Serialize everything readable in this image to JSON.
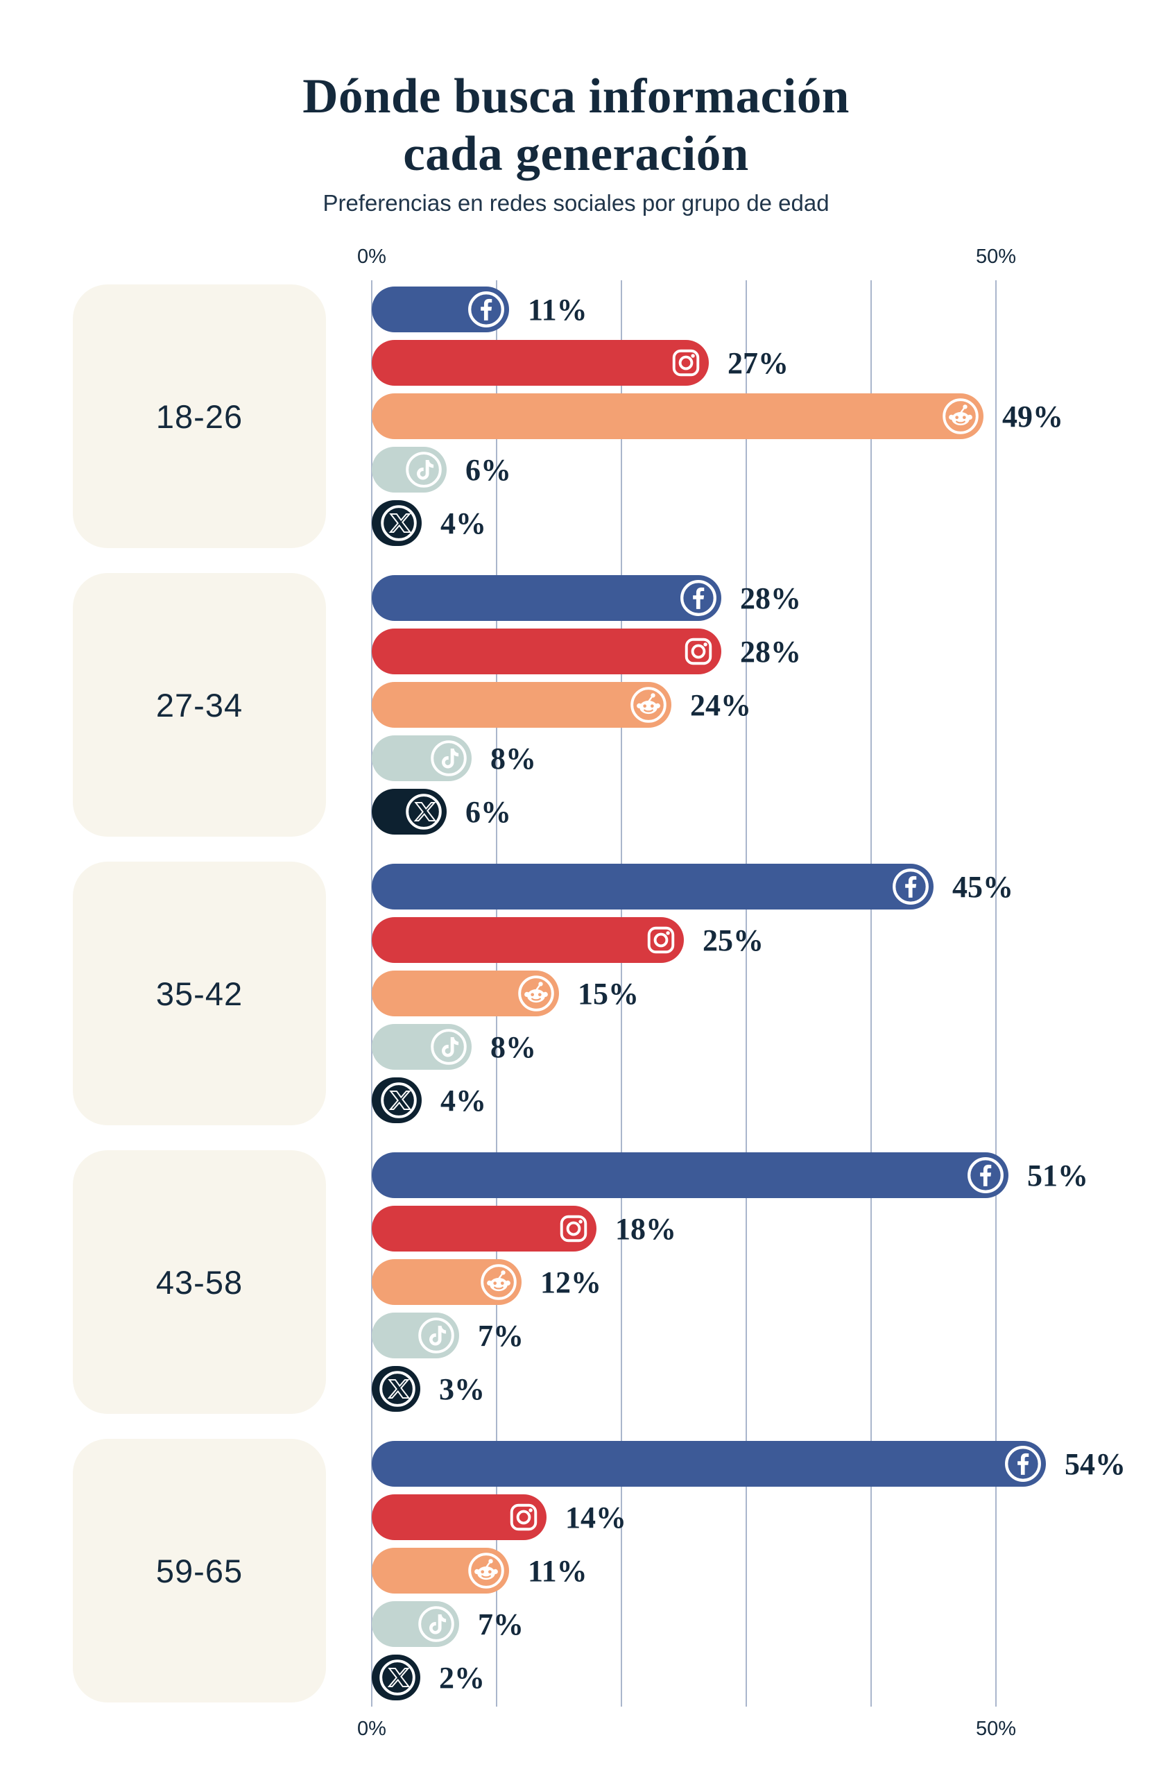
{
  "title": {
    "line1": "Dónde busca información",
    "line2": "cada generación"
  },
  "subtitle": "Preferencias en redes sociales por grupo de edad",
  "axis": {
    "top_left": "0%",
    "top_right": "50%",
    "bottom_left": "0%",
    "bottom_right": "50%"
  },
  "colors": {
    "background": "#ffffff",
    "text": "#14293c",
    "group_box": "#f8f5ec",
    "gridline": "#aab6cc",
    "facebook": "#3d5a97",
    "instagram": "#d8393f",
    "reddit": "#f3a173",
    "tiktok": "#c2d5d1",
    "x": "#0d2130"
  },
  "chart_data": {
    "type": "bar",
    "orientation": "horizontal",
    "title": "Dónde busca información cada generación",
    "subtitle": "Preferencias en redes sociales por grupo de edad",
    "xlabel": "",
    "ylabel": "",
    "grid": true,
    "legend_position": "none",
    "x_axis": {
      "min": 0,
      "max": 50,
      "unit": "%",
      "gridline_step": 10,
      "tick_labels": [
        "0%",
        "50%"
      ]
    },
    "categories": [
      "18-26",
      "27-34",
      "35-42",
      "43-58",
      "59-65"
    ],
    "series": [
      {
        "name": "Facebook",
        "icon": "facebook-icon",
        "color": "#3d5a97",
        "values": [
          11,
          28,
          45,
          51,
          54
        ]
      },
      {
        "name": "Instagram",
        "icon": "instagram-icon",
        "color": "#d8393f",
        "values": [
          27,
          28,
          25,
          18,
          14
        ]
      },
      {
        "name": "Reddit",
        "icon": "reddit-icon",
        "color": "#f3a173",
        "values": [
          49,
          24,
          15,
          12,
          11
        ]
      },
      {
        "name": "TikTok",
        "icon": "tiktok-icon",
        "color": "#c2d5d1",
        "values": [
          6,
          8,
          8,
          7,
          7
        ]
      },
      {
        "name": "X",
        "icon": "x-icon",
        "color": "#0d2130",
        "values": [
          4,
          6,
          4,
          3,
          2
        ]
      }
    ],
    "value_label_format": "{value}%"
  }
}
